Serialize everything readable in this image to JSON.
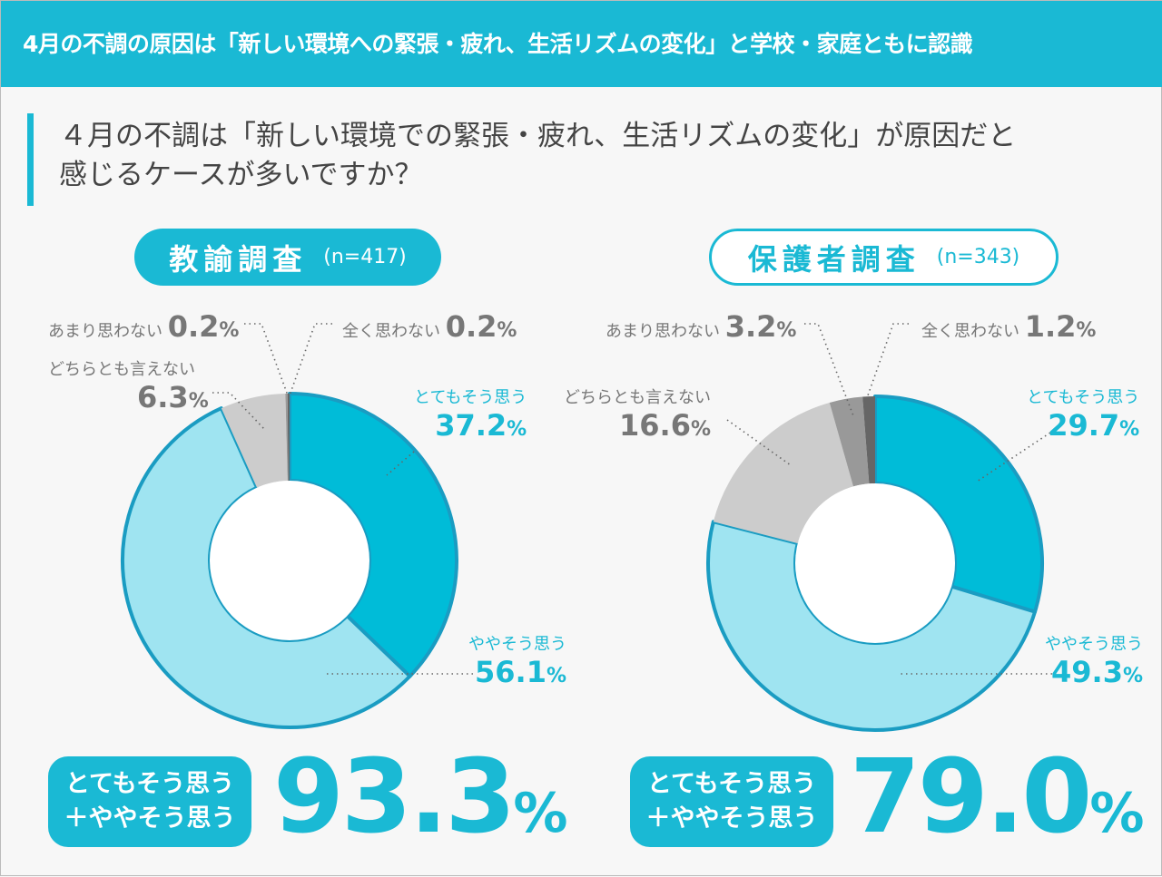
{
  "header": {
    "title": "4月の不調の原因は「新しい環境への緊張・疲れ、生活リズムの変化」と学校・家庭ともに認識"
  },
  "question": {
    "line1": "４月の不調は「新しい環境での緊張・疲れ、生活リズムの変化」が原因だと",
    "line2": "感じるケースが多いですか？"
  },
  "colors": {
    "accent": "#1ab9d4",
    "very": "#00bcd8",
    "somewhat": "#9fe4f1",
    "neutral": "#cccccc",
    "notmuch": "#999999",
    "notatall": "#666666",
    "stroke": "#1a9cc2"
  },
  "chart_data": [
    {
      "type": "pie",
      "title": "教諭調査",
      "n": "(n=417)",
      "categories": [
        "とてもそう思う",
        "ややそう思う",
        "どちらとも言えない",
        "あまり思わない",
        "全く思わない"
      ],
      "values": [
        37.2,
        56.1,
        6.3,
        0.2,
        0.2
      ],
      "labels": [
        "37.2",
        "56.1",
        "6.3",
        "0.2",
        "0.2"
      ],
      "unit": "%",
      "summary_label1": "とてもそう思う",
      "summary_label2": "＋ややそう思う",
      "summary_value": "93.3"
    },
    {
      "type": "pie",
      "title": "保護者調査",
      "n": "(n=343)",
      "categories": [
        "とてもそう思う",
        "ややそう思う",
        "どちらとも言えない",
        "あまり思わない",
        "全く思わない"
      ],
      "values": [
        29.7,
        49.3,
        16.6,
        3.2,
        1.2
      ],
      "labels": [
        "29.7",
        "49.3",
        "16.6",
        "3.2",
        "1.2"
      ],
      "unit": "%",
      "summary_label1": "とてもそう思う",
      "summary_label2": "＋ややそう思う",
      "summary_value": "79.0"
    }
  ]
}
